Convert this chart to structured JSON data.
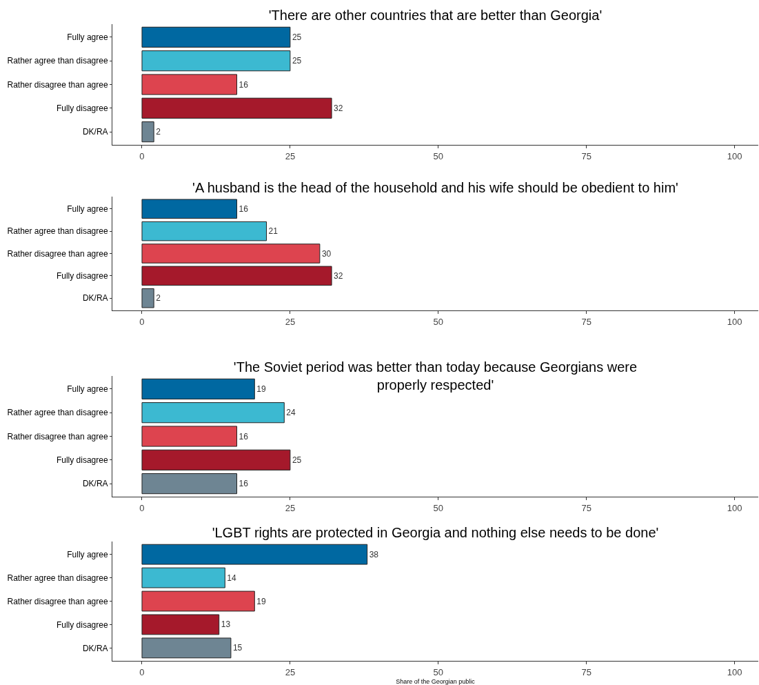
{
  "chart_data": [
    {
      "type": "bar",
      "orientation": "horizontal",
      "title": "'There are other countries that are better than Georgia'",
      "categories": [
        "Fully agree",
        "Rather agree than disagree",
        "Rather disagree than agree",
        "Fully disagree",
        "DK/RA"
      ],
      "values": [
        25,
        25,
        16,
        32,
        2
      ],
      "colors": [
        "#0068a1",
        "#3cb9d1",
        "#dd444f",
        "#a5192b",
        "#6e8593"
      ],
      "data_labels": true,
      "xlim": [
        -5,
        104
      ],
      "xticks": [
        0,
        25,
        50,
        75,
        100
      ]
    },
    {
      "type": "bar",
      "orientation": "horizontal",
      "title": "'A husband is the head of the household and his wife should be obedient to him'",
      "categories": [
        "Fully agree",
        "Rather agree than disagree",
        "Rather disagree than agree",
        "Fully disagree",
        "DK/RA"
      ],
      "values": [
        16,
        21,
        30,
        32,
        2
      ],
      "colors": [
        "#0068a1",
        "#3cb9d1",
        "#dd444f",
        "#a5192b",
        "#6e8593"
      ],
      "data_labels": true,
      "xlim": [
        -5,
        104
      ],
      "xticks": [
        0,
        25,
        50,
        75,
        100
      ]
    },
    {
      "type": "bar",
      "orientation": "horizontal",
      "title": "'The Soviet period was better than today because Georgians were\nproperly respected'",
      "categories": [
        "Fully agree",
        "Rather agree than disagree",
        "Rather disagree than agree",
        "Fully disagree",
        "DK/RA"
      ],
      "values": [
        19,
        24,
        16,
        25,
        16
      ],
      "colors": [
        "#0068a1",
        "#3cb9d1",
        "#dd444f",
        "#a5192b",
        "#6e8593"
      ],
      "data_labels": true,
      "xlim": [
        -5,
        104
      ],
      "xticks": [
        0,
        25,
        50,
        75,
        100
      ]
    },
    {
      "type": "bar",
      "orientation": "horizontal",
      "title": "'LGBT rights are protected in Georgia and nothing else needs to be done'",
      "categories": [
        "Fully agree",
        "Rather agree than disagree",
        "Rather disagree than agree",
        "Fully disagree",
        "DK/RA"
      ],
      "values": [
        38,
        14,
        19,
        13,
        15
      ],
      "colors": [
        "#0068a1",
        "#3cb9d1",
        "#dd444f",
        "#a5192b",
        "#6e8593"
      ],
      "data_labels": true,
      "xlim": [
        -5,
        104
      ],
      "xticks": [
        0,
        25,
        50,
        75,
        100
      ],
      "xlabel": "Share of the Georgian public"
    }
  ]
}
